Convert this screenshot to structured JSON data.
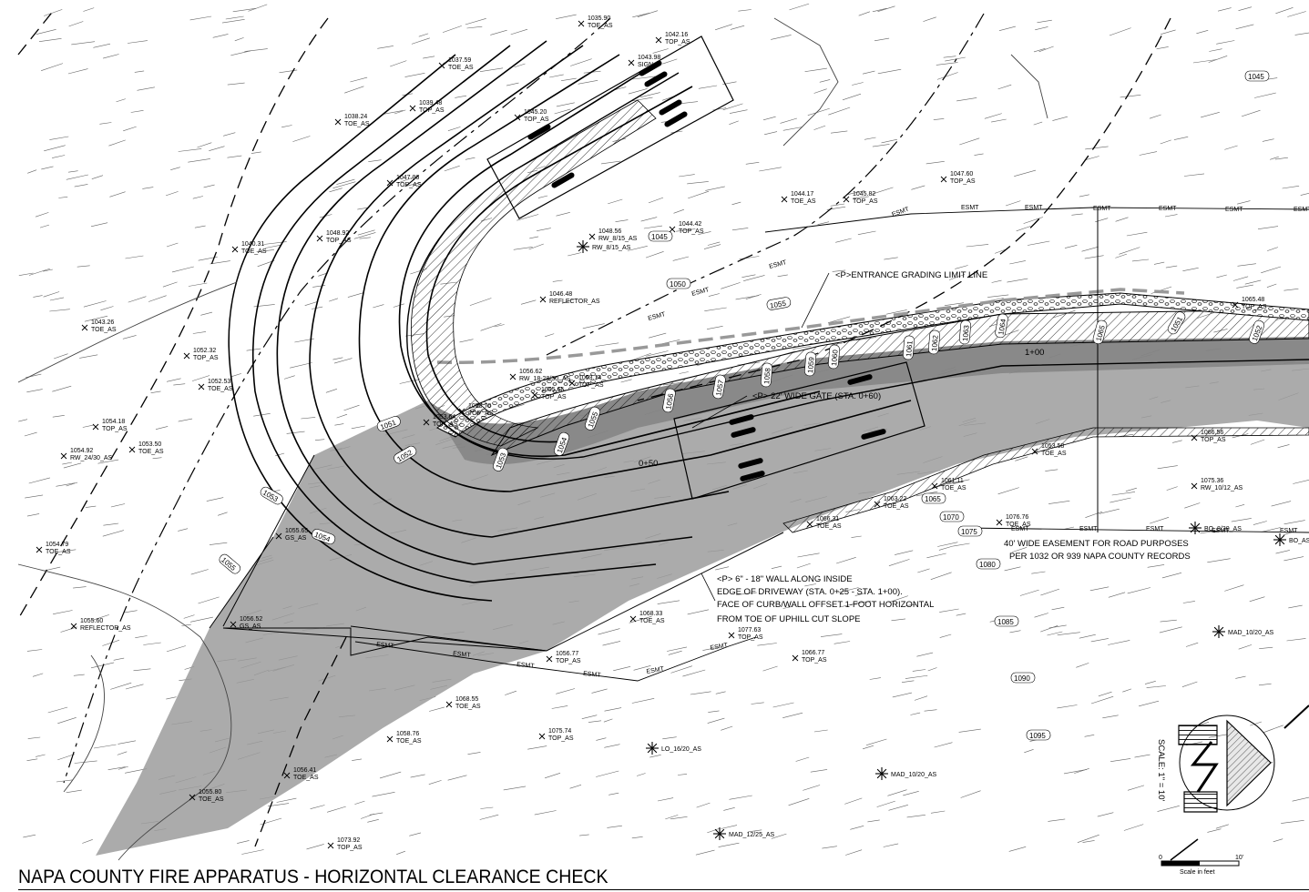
{
  "title": "NAPA COUNTY FIRE APPARATUS - HORIZONTAL CLEARANCE CHECK",
  "notes": {
    "grading_limit": "<P>ENTRANCE GRADING LIMIT LINE",
    "gate": "<P> 22' WIDE GATE (STA. 0+60)",
    "wall_1": "<P> 6\" - 18\" WALL ALONG INSIDE",
    "wall_2": "EDGE OF DRIVEWAY (STA. 0+25 - STA. 1+00).",
    "wall_3": "FACE OF CURB/WALL OFFSET 1-FOOT HORIZONTAL",
    "wall_4": "FROM TOE OF UPHILL CUT SLOPE",
    "easement_1": "40' WIDE EASEMENT FOR ROAD PURPOSES",
    "easement_2": "PER 1032 OR 939 NAPA COUNTY RECORDS"
  },
  "stations": [
    "0+50",
    "1+00"
  ],
  "scale": {
    "text": "SCALE: 1\" = 10'",
    "zero": "0",
    "ten": "10'",
    "caption": "Scale in feet"
  },
  "line_label": "ESMT",
  "contours": [
    "1045",
    "1045",
    "1050",
    "1055",
    "1051",
    "1052",
    "1053",
    "1054",
    "1055",
    "1065",
    "1070",
    "1075",
    "1080",
    "1085",
    "1090",
    "1095",
    "1053",
    "1054",
    "1055",
    "1056",
    "1057",
    "1058",
    "1059",
    "1060",
    "1061",
    "1062",
    "1063",
    "1064",
    "1065",
    "1051",
    "1052"
  ],
  "spot_labels": [
    {
      "v": "1035.90",
      "c": "TOE_AS"
    },
    {
      "v": "1042.16",
      "c": "TOP_AS"
    },
    {
      "v": "1037.59",
      "c": "TOE_AS"
    },
    {
      "v": "1043.98",
      "c": "SIGN"
    },
    {
      "v": "1039.48",
      "c": "TOP_AS"
    },
    {
      "v": "1045.20",
      "c": "TOP_AS"
    },
    {
      "v": "1038.24",
      "c": "TOE_AS"
    },
    {
      "v": "1047.06",
      "c": "TOP_AS"
    },
    {
      "v": "1044.17",
      "c": "TOE_AS"
    },
    {
      "v": "1045.82",
      "c": "TOP_AS"
    },
    {
      "v": "1047.60",
      "c": "TOP_AS"
    },
    {
      "v": "1048.92",
      "c": "TOP_AS"
    },
    {
      "v": "1040.31",
      "c": "TOE_AS"
    },
    {
      "v": "1048.56",
      "c": "RW_8/15_AS"
    },
    {
      "v": "1044.42",
      "c": "TOP_AS"
    },
    {
      "v": "1046.48",
      "c": "REFLECTOR_AS"
    },
    {
      "v": "1043.26",
      "c": "TOE_AS"
    },
    {
      "v": "1052.32",
      "c": "TOP_AS"
    },
    {
      "v": "1052.53",
      "c": "TOE_AS"
    },
    {
      "v": "1054.18",
      "c": "TOP_AS"
    },
    {
      "v": "1053.50",
      "c": "TOE_AS"
    },
    {
      "v": "1054.92",
      "c": "RW_24/30_AS"
    },
    {
      "v": "1054.79",
      "c": "TOE_AS"
    },
    {
      "v": "1055.60",
      "c": "REFLECTOR_AS"
    },
    {
      "v": "1056.62",
      "c": "RW_18-28/30_AS"
    },
    {
      "v": "1053.14",
      "c": "TOP_AS"
    },
    {
      "v": "1053.70",
      "c": "TOP_AS"
    },
    {
      "v": "1055.65",
      "c": "TOP_AS"
    },
    {
      "v": "1053.64",
      "c": "TOP_AS"
    },
    {
      "v": "1065.48",
      "c": "TOP_AS"
    },
    {
      "v": "1053.58",
      "c": "TOE_AS"
    },
    {
      "v": "1061.11",
      "c": "TOE_AS"
    },
    {
      "v": "1063.22",
      "c": "TOE_AS"
    },
    {
      "v": "1066.31",
      "c": "TOE_AS"
    },
    {
      "v": "1076.76",
      "c": "TOE_AS"
    },
    {
      "v": "1066.56",
      "c": "TOP_AS"
    },
    {
      "v": "1075.36",
      "c": "RW_10/12_AS"
    },
    {
      "v": "1056.77",
      "c": "TOP_AS"
    },
    {
      "v": "1068.33",
      "c": "TOE_AS"
    },
    {
      "v": "1077.63",
      "c": "TOP_AS"
    },
    {
      "v": "1066.77",
      "c": "TOP_AS"
    },
    {
      "v": "1068.55",
      "c": "TOE_AS"
    },
    {
      "v": "1058.76",
      "c": "TOE_AS"
    },
    {
      "v": "1075.74",
      "c": "TOP_AS"
    },
    {
      "v": "1056.41",
      "c": "TOE_AS"
    },
    {
      "v": "1055.80",
      "c": "TOE_AS"
    },
    {
      "v": "1073.92",
      "c": "TOP_AS"
    },
    {
      "v": "1056.52",
      "c": "GS_AS"
    },
    {
      "v": "1055.65",
      "c": "GS_AS"
    }
  ],
  "trees": [
    "RW_8/15_AS",
    "BO_8/30_AS",
    "BO_AS",
    "MAD_10/20_AS",
    "LO_16/20_AS",
    "MAD_10/20_AS",
    "MAD_12/25_AS"
  ]
}
